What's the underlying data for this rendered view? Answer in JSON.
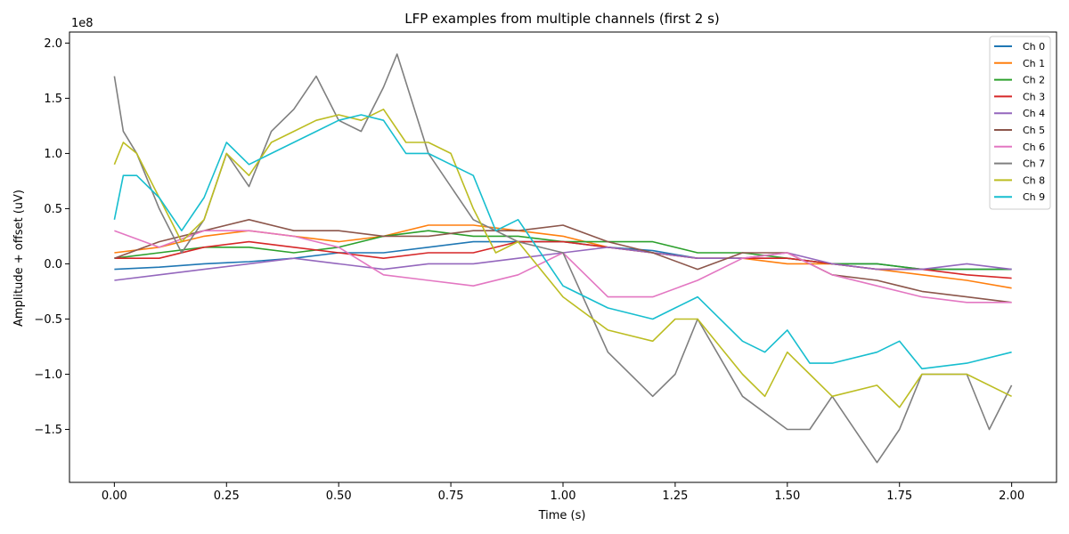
{
  "chart_data": {
    "type": "line",
    "title": "LFP examples from multiple channels (first 2 s)",
    "xlabel": "Time (s)",
    "ylabel": "Amplitude + offset (uV)",
    "y_multiplier_label": "1e8",
    "xlim": [
      -0.1,
      2.1
    ],
    "ylim": [
      -1.98,
      2.1
    ],
    "x_ticks": [
      0.0,
      0.25,
      0.5,
      0.75,
      1.0,
      1.25,
      1.5,
      1.75,
      2.0
    ],
    "x_tick_labels": [
      "0.00",
      "0.25",
      "0.50",
      "0.75",
      "1.00",
      "1.25",
      "1.50",
      "1.75",
      "2.00"
    ],
    "y_ticks": [
      -1.5,
      -1.0,
      -0.5,
      0.0,
      0.5,
      1.0,
      1.5,
      2.0
    ],
    "y_tick_labels": [
      "−1.5",
      "−1.0",
      "−0.5",
      "0.0",
      "0.5",
      "1.0",
      "1.5",
      "2.0"
    ],
    "grid": false,
    "legend_position": "top-right",
    "series": [
      {
        "name": "Ch 0",
        "color": "#1f77b4",
        "x": [
          0,
          0.1,
          0.2,
          0.3,
          0.4,
          0.5,
          0.6,
          0.7,
          0.8,
          0.9,
          1.0,
          1.1,
          1.2,
          1.3,
          1.4,
          1.5,
          1.6,
          1.7,
          1.8,
          1.9,
          2.0
        ],
        "y": [
          -0.05,
          -0.03,
          0.0,
          0.02,
          0.05,
          0.1,
          0.1,
          0.15,
          0.2,
          0.2,
          0.2,
          0.15,
          0.12,
          0.05,
          0.05,
          0.05,
          0.0,
          0.0,
          -0.05,
          -0.05,
          -0.05
        ]
      },
      {
        "name": "Ch 1",
        "color": "#ff7f0e",
        "x": [
          0,
          0.1,
          0.2,
          0.3,
          0.4,
          0.5,
          0.6,
          0.7,
          0.8,
          0.9,
          1.0,
          1.1,
          1.2,
          1.3,
          1.4,
          1.5,
          1.6,
          1.7,
          1.8,
          1.9,
          2.0
        ],
        "y": [
          0.1,
          0.15,
          0.25,
          0.3,
          0.25,
          0.2,
          0.25,
          0.35,
          0.35,
          0.3,
          0.25,
          0.15,
          0.1,
          0.05,
          0.05,
          0.0,
          0.0,
          -0.05,
          -0.1,
          -0.15,
          -0.22
        ]
      },
      {
        "name": "Ch 2",
        "color": "#2ca02c",
        "x": [
          0,
          0.1,
          0.2,
          0.3,
          0.4,
          0.5,
          0.6,
          0.7,
          0.8,
          0.9,
          1.0,
          1.1,
          1.2,
          1.3,
          1.4,
          1.5,
          1.6,
          1.7,
          1.8,
          1.9,
          2.0
        ],
        "y": [
          0.05,
          0.1,
          0.15,
          0.15,
          0.1,
          0.15,
          0.25,
          0.3,
          0.25,
          0.25,
          0.2,
          0.2,
          0.2,
          0.1,
          0.1,
          0.05,
          0.0,
          0.0,
          -0.05,
          -0.05,
          -0.05
        ]
      },
      {
        "name": "Ch 3",
        "color": "#d62728",
        "x": [
          0,
          0.1,
          0.2,
          0.3,
          0.4,
          0.5,
          0.6,
          0.7,
          0.8,
          0.9,
          1.0,
          1.1,
          1.2,
          1.3,
          1.4,
          1.5,
          1.6,
          1.7,
          1.8,
          1.9,
          2.0
        ],
        "y": [
          0.05,
          0.05,
          0.15,
          0.2,
          0.15,
          0.1,
          0.05,
          0.1,
          0.1,
          0.2,
          0.2,
          0.15,
          0.1,
          0.05,
          0.05,
          0.05,
          0.0,
          -0.05,
          -0.05,
          -0.1,
          -0.13
        ]
      },
      {
        "name": "Ch 4",
        "color": "#9467bd",
        "x": [
          0,
          0.1,
          0.2,
          0.3,
          0.4,
          0.5,
          0.6,
          0.7,
          0.8,
          0.9,
          1.0,
          1.1,
          1.2,
          1.3,
          1.4,
          1.5,
          1.6,
          1.7,
          1.8,
          1.9,
          2.0
        ],
        "y": [
          -0.15,
          -0.1,
          -0.05,
          0.0,
          0.05,
          0.0,
          -0.05,
          0.0,
          0.0,
          0.05,
          0.1,
          0.15,
          0.1,
          0.05,
          0.05,
          0.1,
          0.0,
          -0.05,
          -0.05,
          0.0,
          -0.05
        ]
      },
      {
        "name": "Ch 5",
        "color": "#8c564b",
        "x": [
          0,
          0.1,
          0.2,
          0.3,
          0.4,
          0.5,
          0.6,
          0.7,
          0.8,
          0.9,
          1.0,
          1.1,
          1.2,
          1.3,
          1.4,
          1.5,
          1.6,
          1.7,
          1.8,
          1.9,
          2.0
        ],
        "y": [
          0.05,
          0.2,
          0.3,
          0.4,
          0.3,
          0.3,
          0.25,
          0.25,
          0.3,
          0.3,
          0.35,
          0.2,
          0.1,
          -0.05,
          0.1,
          0.1,
          -0.1,
          -0.15,
          -0.25,
          -0.3,
          -0.35
        ]
      },
      {
        "name": "Ch 6",
        "color": "#e377c2",
        "x": [
          0,
          0.1,
          0.2,
          0.3,
          0.4,
          0.5,
          0.6,
          0.7,
          0.8,
          0.9,
          1.0,
          1.1,
          1.2,
          1.3,
          1.4,
          1.5,
          1.6,
          1.7,
          1.8,
          1.9,
          2.0
        ],
        "y": [
          0.3,
          0.15,
          0.3,
          0.3,
          0.25,
          0.15,
          -0.1,
          -0.15,
          -0.2,
          -0.1,
          0.1,
          -0.3,
          -0.3,
          -0.15,
          0.05,
          0.1,
          -0.1,
          -0.2,
          -0.3,
          -0.35,
          -0.35
        ]
      },
      {
        "name": "Ch 7",
        "color": "#7f7f7f",
        "x": [
          0,
          0.02,
          0.05,
          0.1,
          0.15,
          0.2,
          0.25,
          0.3,
          0.35,
          0.4,
          0.45,
          0.5,
          0.55,
          0.6,
          0.63,
          0.7,
          0.8,
          0.9,
          1.0,
          1.1,
          1.2,
          1.25,
          1.3,
          1.4,
          1.5,
          1.55,
          1.6,
          1.7,
          1.75,
          1.8,
          1.9,
          1.95,
          2.0
        ],
        "y": [
          1.7,
          1.2,
          1.0,
          0.5,
          0.1,
          0.4,
          1.0,
          0.7,
          1.2,
          1.4,
          1.7,
          1.3,
          1.2,
          1.6,
          1.9,
          1.0,
          0.4,
          0.2,
          0.1,
          -0.8,
          -1.2,
          -1.0,
          -0.5,
          -1.2,
          -1.5,
          -1.5,
          -1.2,
          -1.8,
          -1.5,
          -1.0,
          -1.0,
          -1.5,
          -1.1
        ]
      },
      {
        "name": "Ch 8",
        "color": "#bcbd22",
        "x": [
          0,
          0.02,
          0.05,
          0.1,
          0.15,
          0.2,
          0.25,
          0.3,
          0.35,
          0.4,
          0.45,
          0.5,
          0.55,
          0.6,
          0.65,
          0.7,
          0.75,
          0.8,
          0.85,
          0.9,
          1.0,
          1.1,
          1.2,
          1.25,
          1.3,
          1.4,
          1.45,
          1.5,
          1.55,
          1.6,
          1.7,
          1.75,
          1.8,
          1.9,
          2.0
        ],
        "y": [
          0.9,
          1.1,
          1.0,
          0.6,
          0.2,
          0.4,
          1.0,
          0.8,
          1.1,
          1.2,
          1.3,
          1.35,
          1.3,
          1.4,
          1.1,
          1.1,
          1.0,
          0.5,
          0.1,
          0.2,
          -0.3,
          -0.6,
          -0.7,
          -0.5,
          -0.5,
          -1.0,
          -1.2,
          -0.8,
          -1.0,
          -1.2,
          -1.1,
          -1.3,
          -1.0,
          -1.0,
          -1.2
        ]
      },
      {
        "name": "Ch 9",
        "color": "#17becf",
        "x": [
          0,
          0.02,
          0.05,
          0.1,
          0.15,
          0.2,
          0.25,
          0.3,
          0.35,
          0.4,
          0.45,
          0.5,
          0.55,
          0.6,
          0.65,
          0.7,
          0.75,
          0.8,
          0.85,
          0.9,
          1.0,
          1.1,
          1.2,
          1.25,
          1.3,
          1.4,
          1.45,
          1.5,
          1.55,
          1.6,
          1.7,
          1.75,
          1.8,
          1.9,
          2.0
        ],
        "y": [
          0.4,
          0.8,
          0.8,
          0.6,
          0.3,
          0.6,
          1.1,
          0.9,
          1.0,
          1.1,
          1.2,
          1.3,
          1.35,
          1.3,
          1.0,
          1.0,
          0.9,
          0.8,
          0.3,
          0.4,
          -0.2,
          -0.4,
          -0.5,
          -0.4,
          -0.3,
          -0.7,
          -0.8,
          -0.6,
          -0.9,
          -0.9,
          -0.8,
          -0.7,
          -0.95,
          -0.9,
          -0.8
        ]
      }
    ]
  }
}
